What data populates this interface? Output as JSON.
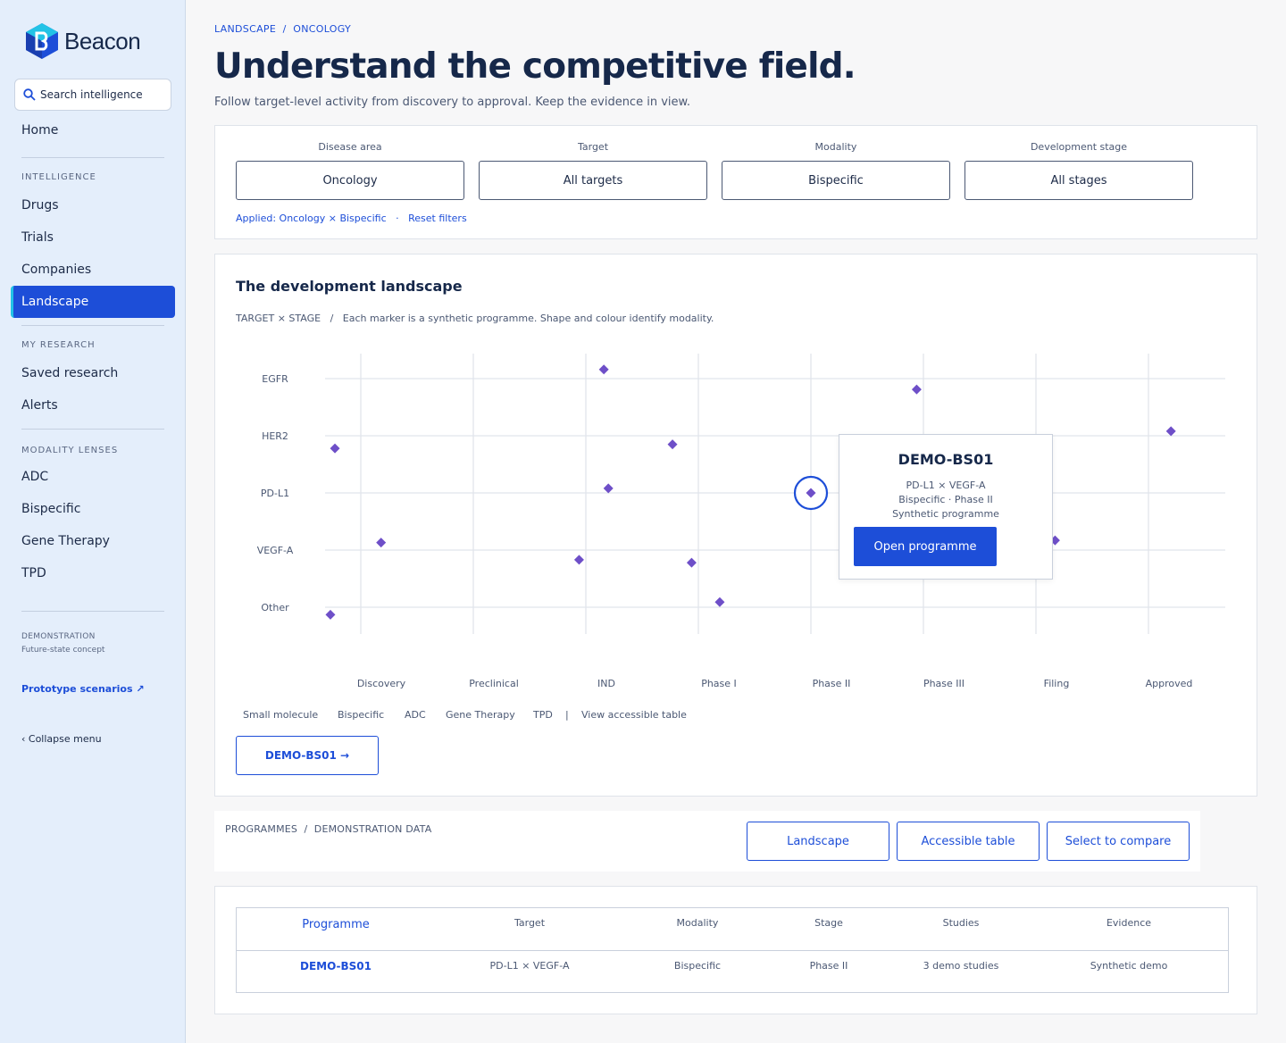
{
  "sidebar": {
    "brand": "Beacon",
    "search_placeholder": "Search intelligence",
    "home": "Home",
    "sections": {
      "intelligence": "INTELLIGENCE",
      "my_research": "MY RESEARCH",
      "modality_lenses": "MODALITY LENSES"
    },
    "intelligence_items": [
      "Drugs",
      "Trials",
      "Companies",
      "Landscape"
    ],
    "active_item": "Landscape",
    "research_items": [
      "Saved research",
      "Alerts"
    ],
    "modality_items": [
      "ADC",
      "Bispecific",
      "Gene Therapy",
      "TPD"
    ],
    "demo_label": "DEMONSTRATION",
    "demo_sub": "Future-state concept",
    "prototype_link": "Prototype scenarios ↗",
    "collapse": "‹  Collapse menu"
  },
  "header": {
    "breadcrumb": "LANDSCAPE  /  ONCOLOGY",
    "title": "Understand the competitive field.",
    "subtitle": "Follow target-level activity from discovery to approval. Keep the evidence in view."
  },
  "filters": {
    "items": [
      {
        "label": "Disease area",
        "value": "Oncology"
      },
      {
        "label": "Target",
        "value": "All targets"
      },
      {
        "label": "Modality",
        "value": "Bispecific"
      },
      {
        "label": "Development stage",
        "value": "All stages"
      }
    ],
    "applied": "Applied: Oncology × Bispecific",
    "separator": "·",
    "reset": "Reset filters"
  },
  "landscape": {
    "title": "The development landscape",
    "caption": "TARGET × STAGE   /   Each marker is a synthetic programme. Shape and colour identify modality.",
    "legend": [
      "Small molecule",
      "Bispecific",
      "ADC",
      "Gene Therapy",
      "TPD"
    ],
    "legend_separator": "|",
    "accessible_link": "View accessible table",
    "selected_button": "DEMO-BS01  →",
    "marker_color": "#6e4fc8",
    "highlight_color": "#1d4ed8"
  },
  "chart_data": {
    "type": "scatter",
    "title": "",
    "xlabel": "",
    "ylabel": "",
    "x_categories": [
      "Discovery",
      "Preclinical",
      "IND",
      "Phase I",
      "Phase II",
      "Phase III",
      "Filing",
      "Approved"
    ],
    "y_categories": [
      "EGFR",
      "HER2",
      "PD-L1",
      "VEGF-A",
      "Other"
    ],
    "points": [
      {
        "stage": 0,
        "target": 1,
        "ox": -0.23,
        "oy": 0.22
      },
      {
        "stage": 0,
        "target": 3,
        "ox": 0.18,
        "oy": -0.13
      },
      {
        "stage": 0,
        "target": 4,
        "ox": -0.27,
        "oy": 0.13
      },
      {
        "stage": 2,
        "target": 0,
        "ox": 0.16,
        "oy": -0.16
      },
      {
        "stage": 2,
        "target": 2,
        "ox": 0.2,
        "oy": -0.08
      },
      {
        "stage": 2,
        "target": 3,
        "ox": -0.06,
        "oy": 0.17
      },
      {
        "stage": 3,
        "target": 1,
        "ox": -0.23,
        "oy": 0.15
      },
      {
        "stage": 3,
        "target": 3,
        "ox": -0.06,
        "oy": 0.22
      },
      {
        "stage": 3,
        "target": 4,
        "ox": 0.19,
        "oy": -0.09
      },
      {
        "stage": 4,
        "target": 2,
        "ox": 0.0,
        "oy": 0.0,
        "id": "DEMO-BS01",
        "highlight": true
      },
      {
        "stage": 5,
        "target": 0,
        "ox": -0.06,
        "oy": 0.19
      },
      {
        "stage": 6,
        "target": 3,
        "ox": 0.17,
        "oy": -0.17
      },
      {
        "stage": 7,
        "target": 1,
        "ox": 0.2,
        "oy": -0.08
      }
    ]
  },
  "tooltip": {
    "title": "DEMO-BS01",
    "target": "PD-L1 × VEGF-A",
    "modality_stage": "Bispecific · Phase II",
    "note": "Synthetic programme",
    "button": "Open programme"
  },
  "programmes": {
    "label": "PROGRAMMES  /  DEMONSTRATION DATA",
    "buttons": [
      "Landscape",
      "Accessible table",
      "Select to compare"
    ],
    "table": {
      "headers": [
        "Programme",
        "Target",
        "Modality",
        "Stage",
        "Studies",
        "Evidence"
      ],
      "rows": [
        [
          "DEMO-BS01",
          "PD-L1 × VEGF-A",
          "Bispecific",
          "Phase II",
          "3 demo studies",
          "Synthetic demo"
        ]
      ]
    }
  }
}
